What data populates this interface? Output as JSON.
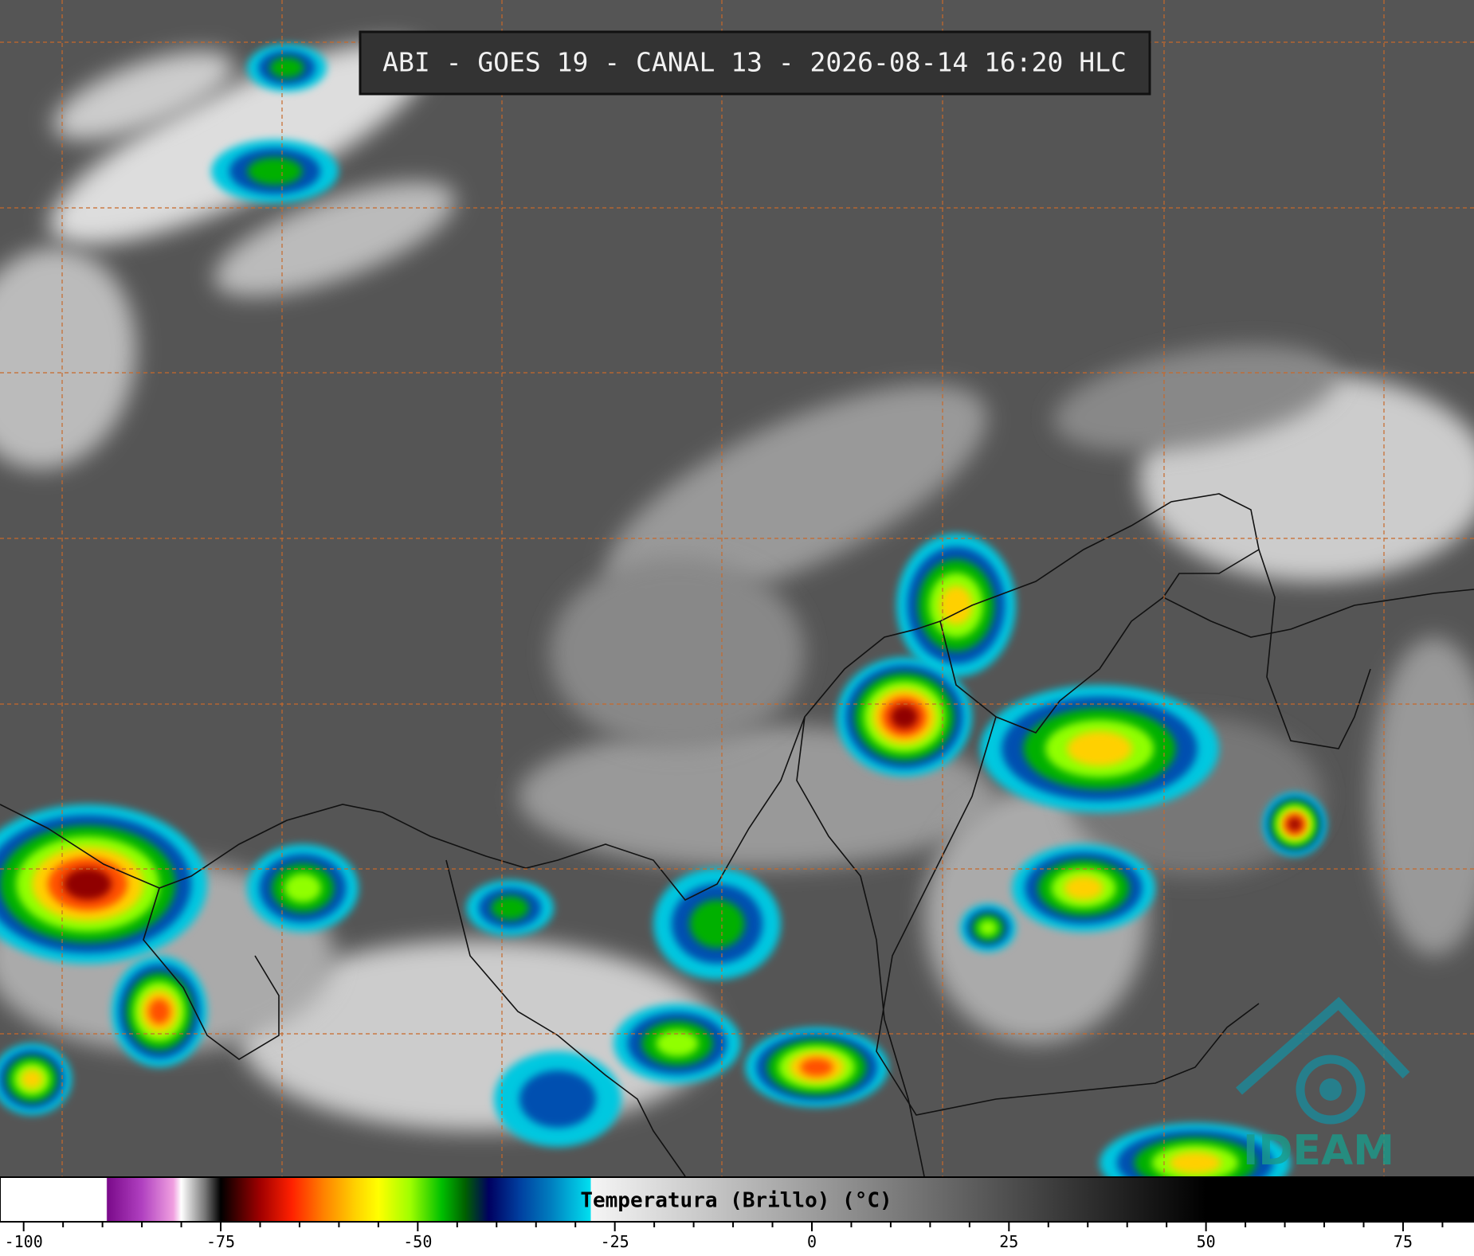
{
  "header": {
    "title": "ABI - GOES 19 - CANAL 13 - 2026-08-14 16:20 HLC"
  },
  "logo": {
    "text": "IDEAM"
  },
  "colorbar": {
    "label": "Temperatura (Brillo) (°C)",
    "lim": [
      -103,
      84
    ],
    "ticks": [
      -100,
      -75,
      -50,
      -25,
      0,
      25,
      50,
      75
    ],
    "minor_ticks": [
      -95,
      -90,
      -85,
      -80,
      -70,
      -65,
      -60,
      -55,
      -45,
      -40,
      -35,
      -30,
      -20,
      -15,
      -10,
      -5,
      5,
      10,
      15,
      20,
      30,
      35,
      40,
      45,
      55,
      60,
      65,
      70,
      80
    ],
    "stops": [
      {
        "value": -103,
        "color": "#ffffff"
      },
      {
        "value": -89.5,
        "color": "#ffffff"
      },
      {
        "value": -89.4,
        "color": "#7a0a8a"
      },
      {
        "value": -85,
        "color": "#b040c0"
      },
      {
        "value": -81,
        "color": "#f0a0e0"
      },
      {
        "value": -80,
        "color": "#ffffff"
      },
      {
        "value": -77,
        "color": "#777777"
      },
      {
        "value": -75,
        "color": "#000000"
      },
      {
        "value": -73,
        "color": "#400000"
      },
      {
        "value": -70,
        "color": "#a00000"
      },
      {
        "value": -66,
        "color": "#ff2000"
      },
      {
        "value": -62,
        "color": "#ff8000"
      },
      {
        "value": -58,
        "color": "#ffd000"
      },
      {
        "value": -55,
        "color": "#ffff00"
      },
      {
        "value": -51,
        "color": "#a0ff00"
      },
      {
        "value": -47,
        "color": "#00c000"
      },
      {
        "value": -44,
        "color": "#006000"
      },
      {
        "value": -41,
        "color": "#000060"
      },
      {
        "value": -37,
        "color": "#0040a0"
      },
      {
        "value": -33,
        "color": "#0080c0"
      },
      {
        "value": -28.1,
        "color": "#00e0f0"
      },
      {
        "value": -28,
        "color": "#f5f5f5"
      },
      {
        "value": 50,
        "color": "#000000"
      },
      {
        "value": 84,
        "color": "#000000"
      }
    ]
  }
}
